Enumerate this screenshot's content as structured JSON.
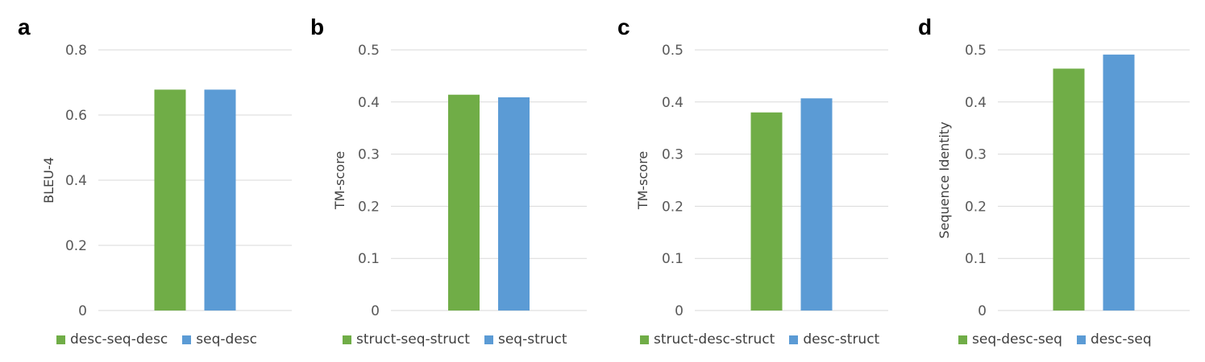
{
  "chart_data": [
    {
      "type": "bar",
      "panel_label": "a",
      "xlabel": "",
      "ylabel": "BLEU-4",
      "ylim": [
        0,
        0.8
      ],
      "yticks": [
        "0",
        "0.2",
        "0.4",
        "0.6",
        "0.8"
      ],
      "grid": true,
      "legend_position": "bottom",
      "series": [
        {
          "name": "desc-seq-desc",
          "color": "#70AD47",
          "value": 0.678
        },
        {
          "name": "seq-desc",
          "color": "#5B9BD5",
          "value": 0.678
        }
      ]
    },
    {
      "type": "bar",
      "panel_label": "b",
      "xlabel": "",
      "ylabel": "TM-score",
      "ylim": [
        0,
        0.5
      ],
      "yticks": [
        "0",
        "0.1",
        "0.2",
        "0.3",
        "0.4",
        "0.5"
      ],
      "grid": true,
      "legend_position": "bottom",
      "series": [
        {
          "name": "struct-seq-struct",
          "color": "#70AD47",
          "value": 0.414
        },
        {
          "name": "seq-struct",
          "color": "#5B9BD5",
          "value": 0.409
        }
      ]
    },
    {
      "type": "bar",
      "panel_label": "c",
      "xlabel": "",
      "ylabel": "TM-score",
      "ylim": [
        0,
        0.5
      ],
      "yticks": [
        "0",
        "0.1",
        "0.2",
        "0.3",
        "0.4",
        "0.5"
      ],
      "grid": true,
      "legend_position": "bottom",
      "series": [
        {
          "name": "struct-desc-struct",
          "color": "#70AD47",
          "value": 0.38
        },
        {
          "name": "desc-struct",
          "color": "#5B9BD5",
          "value": 0.407
        }
      ]
    },
    {
      "type": "bar",
      "panel_label": "d",
      "xlabel": "",
      "ylabel": "Sequence Identity",
      "ylim": [
        0,
        0.5
      ],
      "yticks": [
        "0",
        "0.1",
        "0.2",
        "0.3",
        "0.4",
        "0.5"
      ],
      "grid": true,
      "legend_position": "bottom",
      "series": [
        {
          "name": "seq-desc-seq",
          "color": "#70AD47",
          "value": 0.464
        },
        {
          "name": "desc-seq",
          "color": "#5B9BD5",
          "value": 0.491
        }
      ]
    }
  ]
}
